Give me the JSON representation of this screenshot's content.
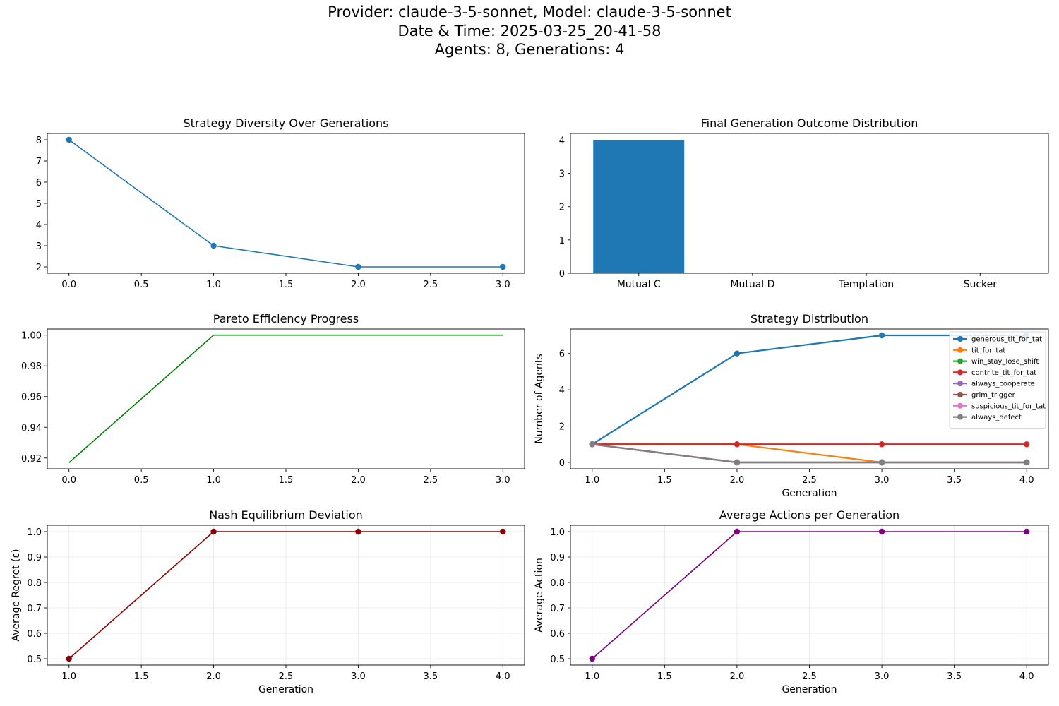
{
  "header": {
    "line1": "Provider: claude-3-5-sonnet, Model: claude-3-5-sonnet",
    "line2": "Date & Time: 2025-03-25_20-41-58",
    "line3": "Agents: 8, Generations: 4"
  },
  "colors": {
    "blue": "#1f77b4",
    "orange": "#ff7f0e",
    "green": "#2ca02c",
    "red": "#d62728",
    "purple": "#9467bd",
    "brown": "#8c564b",
    "pink": "#e377c2",
    "gray": "#7f7f7f",
    "pareto_line": "#008000",
    "nash_line": "#8b0000",
    "actions_line": "#800080"
  },
  "chart_data": [
    {
      "id": "diversity",
      "type": "line",
      "title": "Strategy Diversity Over Generations",
      "xlabel": "",
      "ylabel": "",
      "xlim": [
        -0.15,
        3.15
      ],
      "ylim": [
        1.7,
        8.3
      ],
      "xticks": [
        "0.0",
        "0.5",
        "1.0",
        "1.5",
        "2.0",
        "2.5",
        "3.0"
      ],
      "yticks": [
        "2",
        "3",
        "4",
        "5",
        "6",
        "7",
        "8"
      ],
      "grid": false,
      "markers": true,
      "series": [
        {
          "color": "#1f77b4",
          "x": [
            0,
            1,
            2,
            3
          ],
          "y": [
            8,
            3,
            2,
            2
          ]
        }
      ]
    },
    {
      "id": "outcomes",
      "type": "bar",
      "title": "Final Generation Outcome Distribution",
      "xlabel": "",
      "ylabel": "",
      "categories": [
        "Mutual C",
        "Mutual D",
        "Temptation",
        "Sucker"
      ],
      "values": [
        4,
        0,
        0,
        0
      ],
      "ylim": [
        0,
        4.2
      ],
      "yticks": [
        "0",
        "1",
        "2",
        "3",
        "4"
      ],
      "color": "#1f77b4",
      "grid": false
    },
    {
      "id": "pareto",
      "type": "line",
      "title": "Pareto Efficiency Progress",
      "xlabel": "",
      "ylabel": "",
      "xlim": [
        -0.15,
        3.15
      ],
      "ylim": [
        0.913,
        1.004
      ],
      "xticks": [
        "0.0",
        "0.5",
        "1.0",
        "1.5",
        "2.0",
        "2.5",
        "3.0"
      ],
      "yticks": [
        "0.92",
        "0.94",
        "0.96",
        "0.98",
        "1.00"
      ],
      "grid": false,
      "markers": false,
      "series": [
        {
          "color": "#008000",
          "x": [
            0,
            1,
            2,
            3
          ],
          "y": [
            0.917,
            1.0,
            1.0,
            1.0
          ]
        }
      ]
    },
    {
      "id": "strategy",
      "type": "line",
      "title": "Strategy Distribution",
      "xlabel": "Generation",
      "ylabel": "Number of Agents",
      "xlim": [
        0.85,
        4.15
      ],
      "ylim": [
        -0.35,
        7.35
      ],
      "xticks": [
        "1.0",
        "1.5",
        "2.0",
        "2.5",
        "3.0",
        "3.5",
        "4.0"
      ],
      "yticks": [
        "0",
        "2",
        "4",
        "6"
      ],
      "grid": false,
      "markers": true,
      "legend": "top-right",
      "series": [
        {
          "name": "generous_tit_for_tat",
          "color": "#1f77b4",
          "x": [
            1,
            2,
            3,
            4
          ],
          "y": [
            1,
            6,
            7,
            7
          ]
        },
        {
          "name": "tit_for_tat",
          "color": "#ff7f0e",
          "x": [
            1,
            2,
            3,
            4
          ],
          "y": [
            1,
            1,
            0,
            0
          ]
        },
        {
          "name": "win_stay_lose_shift",
          "color": "#2ca02c",
          "x": [
            1,
            2,
            3,
            4
          ],
          "y": [
            1,
            0,
            0,
            0
          ]
        },
        {
          "name": "contrite_tit_for_tat",
          "color": "#d62728",
          "x": [
            1,
            2,
            3,
            4
          ],
          "y": [
            1,
            1,
            1,
            1
          ]
        },
        {
          "name": "always_cooperate",
          "color": "#9467bd",
          "x": [
            1,
            2,
            3,
            4
          ],
          "y": [
            1,
            0,
            0,
            0
          ]
        },
        {
          "name": "grim_trigger",
          "color": "#8c564b",
          "x": [
            1,
            2,
            3,
            4
          ],
          "y": [
            1,
            0,
            0,
            0
          ]
        },
        {
          "name": "suspicious_tit_for_tat",
          "color": "#e377c2",
          "x": [
            1,
            2,
            3,
            4
          ],
          "y": [
            1,
            0,
            0,
            0
          ]
        },
        {
          "name": "always_defect",
          "color": "#7f7f7f",
          "x": [
            1,
            2,
            3,
            4
          ],
          "y": [
            1,
            0,
            0,
            0
          ]
        }
      ]
    },
    {
      "id": "nash",
      "type": "line",
      "title": "Nash Equilibrium Deviation",
      "xlabel": "Generation",
      "ylabel": "Average Regret (ε)",
      "xlim": [
        0.85,
        4.15
      ],
      "ylim": [
        0.475,
        1.025
      ],
      "xticks": [
        "1.0",
        "1.5",
        "2.0",
        "2.5",
        "3.0",
        "3.5",
        "4.0"
      ],
      "yticks": [
        "0.5",
        "0.6",
        "0.7",
        "0.8",
        "0.9",
        "1.0"
      ],
      "grid": true,
      "markers": true,
      "series": [
        {
          "color": "#8b0000",
          "x": [
            1,
            2,
            3,
            4
          ],
          "y": [
            0.5,
            1.0,
            1.0,
            1.0
          ]
        }
      ]
    },
    {
      "id": "actions",
      "type": "line",
      "title": "Average Actions per Generation",
      "xlabel": "Generation",
      "ylabel": "Average Action",
      "xlim": [
        0.85,
        4.15
      ],
      "ylim": [
        0.475,
        1.025
      ],
      "xticks": [
        "1.0",
        "1.5",
        "2.0",
        "2.5",
        "3.0",
        "3.5",
        "4.0"
      ],
      "yticks": [
        "0.5",
        "0.6",
        "0.7",
        "0.8",
        "0.9",
        "1.0"
      ],
      "grid": true,
      "markers": true,
      "series": [
        {
          "color": "#800080",
          "x": [
            1,
            2,
            3,
            4
          ],
          "y": [
            0.5,
            1.0,
            1.0,
            1.0
          ]
        }
      ]
    }
  ]
}
